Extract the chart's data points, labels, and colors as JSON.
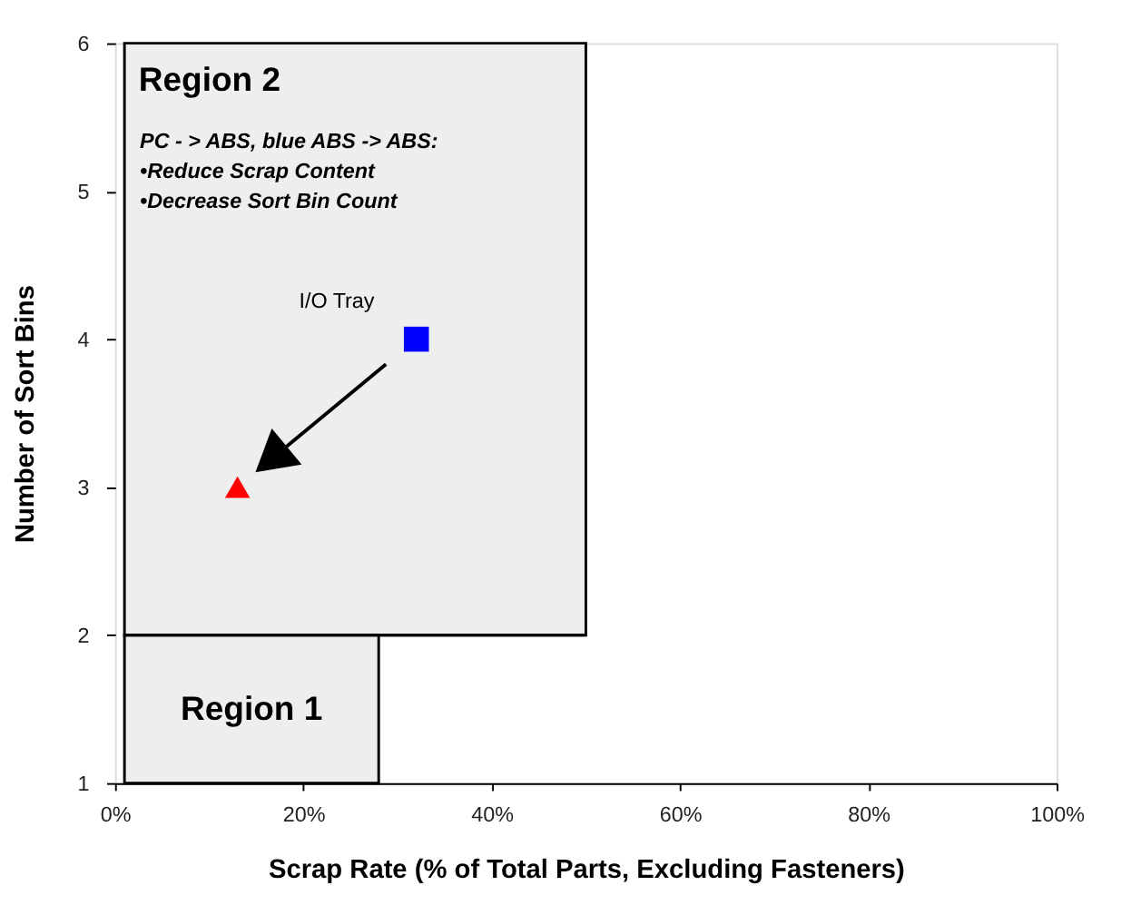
{
  "chart_data": {
    "type": "scatter",
    "xlabel": "Scrap Rate (% of Total Parts, Excluding Fasteners)",
    "ylabel": "Number of Sort Bins",
    "xlim": [
      0,
      100
    ],
    "ylim": [
      1,
      6
    ],
    "xticks": [
      {
        "value": 0,
        "label": "0%"
      },
      {
        "value": 20,
        "label": "20%"
      },
      {
        "value": 40,
        "label": "40%"
      },
      {
        "value": 60,
        "label": "60%"
      },
      {
        "value": 80,
        "label": "80%"
      },
      {
        "value": 100,
        "label": "100%"
      }
    ],
    "yticks": [
      1,
      2,
      3,
      4,
      5,
      6
    ],
    "grid": false,
    "ref_lines": [
      {
        "axis": "y",
        "value": 2
      }
    ],
    "series": [
      {
        "color": "#0000ff",
        "marker": "square",
        "x": [
          32
        ],
        "values": [
          4
        ]
      },
      {
        "color": "#ff0000",
        "marker": "triangle",
        "x": [
          13
        ],
        "values": [
          3
        ]
      }
    ],
    "bands": [
      {
        "axis": "x",
        "from": 1,
        "to": 50,
        "label": "Region 2",
        "color": "#eeeeee"
      },
      {
        "axis": "x",
        "from": 1,
        "to": 28,
        "label": "Region 1",
        "color": "#eeeeee"
      }
    ],
    "annotations": [
      "PC - > ABS, blue ABS -> ABS:",
      "•Reduce Scrap Content",
      "•Decrease Sort Bin Count",
      {
        "text": "I/O Tray",
        "x": 32,
        "y": 4
      }
    ]
  }
}
